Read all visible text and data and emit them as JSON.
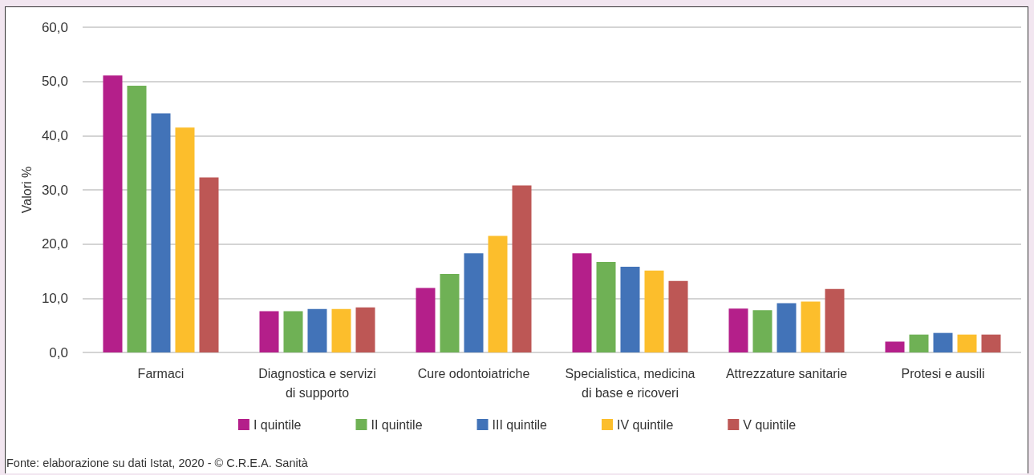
{
  "chart_data": {
    "type": "bar",
    "ylabel": "Valori %",
    "categories": [
      "Farmaci",
      "Diagnostica e servizi\ndi supporto",
      "Cure odontoiatriche",
      "Specialistica, medicina\ndi base e ricoveri",
      "Attrezzature sanitarie",
      "Protesi e ausili"
    ],
    "series": [
      {
        "name": "I quintile",
        "color": "#b41f8a",
        "values": [
          51.1,
          7.6,
          11.9,
          18.3,
          8.1,
          2.0
        ]
      },
      {
        "name": "II quintile",
        "color": "#6fb155",
        "values": [
          49.2,
          7.6,
          14.5,
          16.7,
          7.8,
          3.3
        ]
      },
      {
        "name": "III quintile",
        "color": "#4273b8",
        "values": [
          44.1,
          8.0,
          18.3,
          15.8,
          9.1,
          3.6
        ]
      },
      {
        "name": "IV quintile",
        "color": "#fcbe2c",
        "values": [
          41.5,
          8.0,
          21.5,
          15.1,
          9.4,
          3.3
        ]
      },
      {
        "name": "V quintile",
        "color": "#bd5755",
        "values": [
          32.3,
          8.3,
          30.8,
          13.2,
          11.7,
          3.3
        ]
      }
    ],
    "ylim": [
      0,
      60
    ],
    "yticks": [
      {
        "value": 0,
        "label": "0,0"
      },
      {
        "value": 10,
        "label": "10,0"
      },
      {
        "value": 20,
        "label": "20,0"
      },
      {
        "value": 30,
        "label": "30,0"
      },
      {
        "value": 40,
        "label": "40,0"
      },
      {
        "value": 50,
        "label": "50,0"
      },
      {
        "value": 60,
        "label": "60,0"
      }
    ],
    "grid": true,
    "legend": "bottom",
    "annotations": [
      "Fonte: elaborazione su dati Istat, 2020 - © C.R.E.A. Sanità"
    ]
  }
}
